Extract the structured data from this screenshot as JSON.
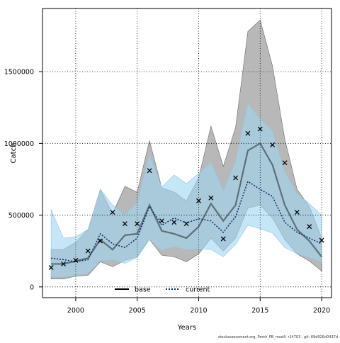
{
  "chart_data": {
    "type": "line",
    "xlabel": "Years",
    "ylabel": "Catch",
    "xlim": [
      1997.3,
      2020.8
    ],
    "ylim": [
      -75000,
      1940000
    ],
    "xticks": [
      2000,
      2005,
      2010,
      2015,
      2020
    ],
    "xtick_labels": [
      "2000",
      "2005",
      "2010",
      "2015",
      "2020"
    ],
    "yticks": [
      0,
      500000,
      1000000,
      1500000
    ],
    "ytick_labels": [
      "0",
      "500000",
      "1000000",
      "1500000"
    ],
    "grid": true,
    "legend_position": "bottom-left",
    "legend": [
      {
        "label": "base",
        "style": "solid",
        "color": "#000000"
      },
      {
        "label": "current",
        "style": "dotted",
        "color": "#0b2a6b"
      }
    ],
    "x": [
      1998,
      1999,
      2000,
      2001,
      2002,
      2003,
      2004,
      2005,
      2006,
      2007,
      2008,
      2009,
      2010,
      2011,
      2012,
      2013,
      2014,
      2015,
      2016,
      2017,
      2018,
      2019,
      2020
    ],
    "observed_catch": [
      135000,
      160000,
      185000,
      250000,
      320000,
      520000,
      440000,
      440000,
      810000,
      460000,
      450000,
      440000,
      600000,
      620000,
      335000,
      760000,
      1070000,
      1100000,
      990000,
      865000,
      520000,
      420000,
      325000
    ],
    "series": [
      {
        "name": "base",
        "color": "#000000",
        "band_color": "#8c8c8c",
        "values": [
          160000,
          160000,
          180000,
          200000,
          330000,
          260000,
          360000,
          370000,
          570000,
          390000,
          370000,
          340000,
          420000,
          580000,
          460000,
          570000,
          950000,
          1000000,
          850000,
          570000,
          400000,
          320000,
          210000
        ],
        "lower": [
          55000,
          55000,
          75000,
          80000,
          175000,
          140000,
          185000,
          210000,
          330000,
          220000,
          210000,
          175000,
          230000,
          340000,
          250000,
          340000,
          550000,
          570000,
          480000,
          330000,
          230000,
          180000,
          110000
        ],
        "upper": [
          260000,
          260000,
          310000,
          400000,
          680000,
          510000,
          700000,
          660000,
          1020000,
          690000,
          660000,
          600000,
          760000,
          1120000,
          840000,
          1110000,
          1780000,
          1860000,
          1540000,
          1030000,
          680000,
          560000,
          340000
        ]
      },
      {
        "name": "current",
        "color": "#0b2a6b",
        "band_color": "#9fd6f2",
        "values": [
          200000,
          190000,
          175000,
          190000,
          370000,
          300000,
          275000,
          340000,
          560000,
          430000,
          480000,
          445000,
          475000,
          460000,
          380000,
          490000,
          735000,
          680000,
          630000,
          450000,
          380000,
          340000,
          300000
        ],
        "lower": [
          70000,
          70000,
          80000,
          95000,
          180000,
          190000,
          165000,
          205000,
          330000,
          255000,
          280000,
          260000,
          265000,
          260000,
          210000,
          295000,
          430000,
          405000,
          375000,
          275000,
          230000,
          205000,
          175000
        ],
        "upper": [
          540000,
          340000,
          350000,
          400000,
          680000,
          570000,
          500000,
          590000,
          920000,
          695000,
          780000,
          720000,
          790000,
          870000,
          670000,
          875000,
          1280000,
          1170000,
          1085000,
          800000,
          650000,
          580000,
          500000
        ]
      }
    ],
    "footer_note": "stockassessment.org, Perch_PB_mod4, r14703 , git: 69d926d0437d"
  }
}
